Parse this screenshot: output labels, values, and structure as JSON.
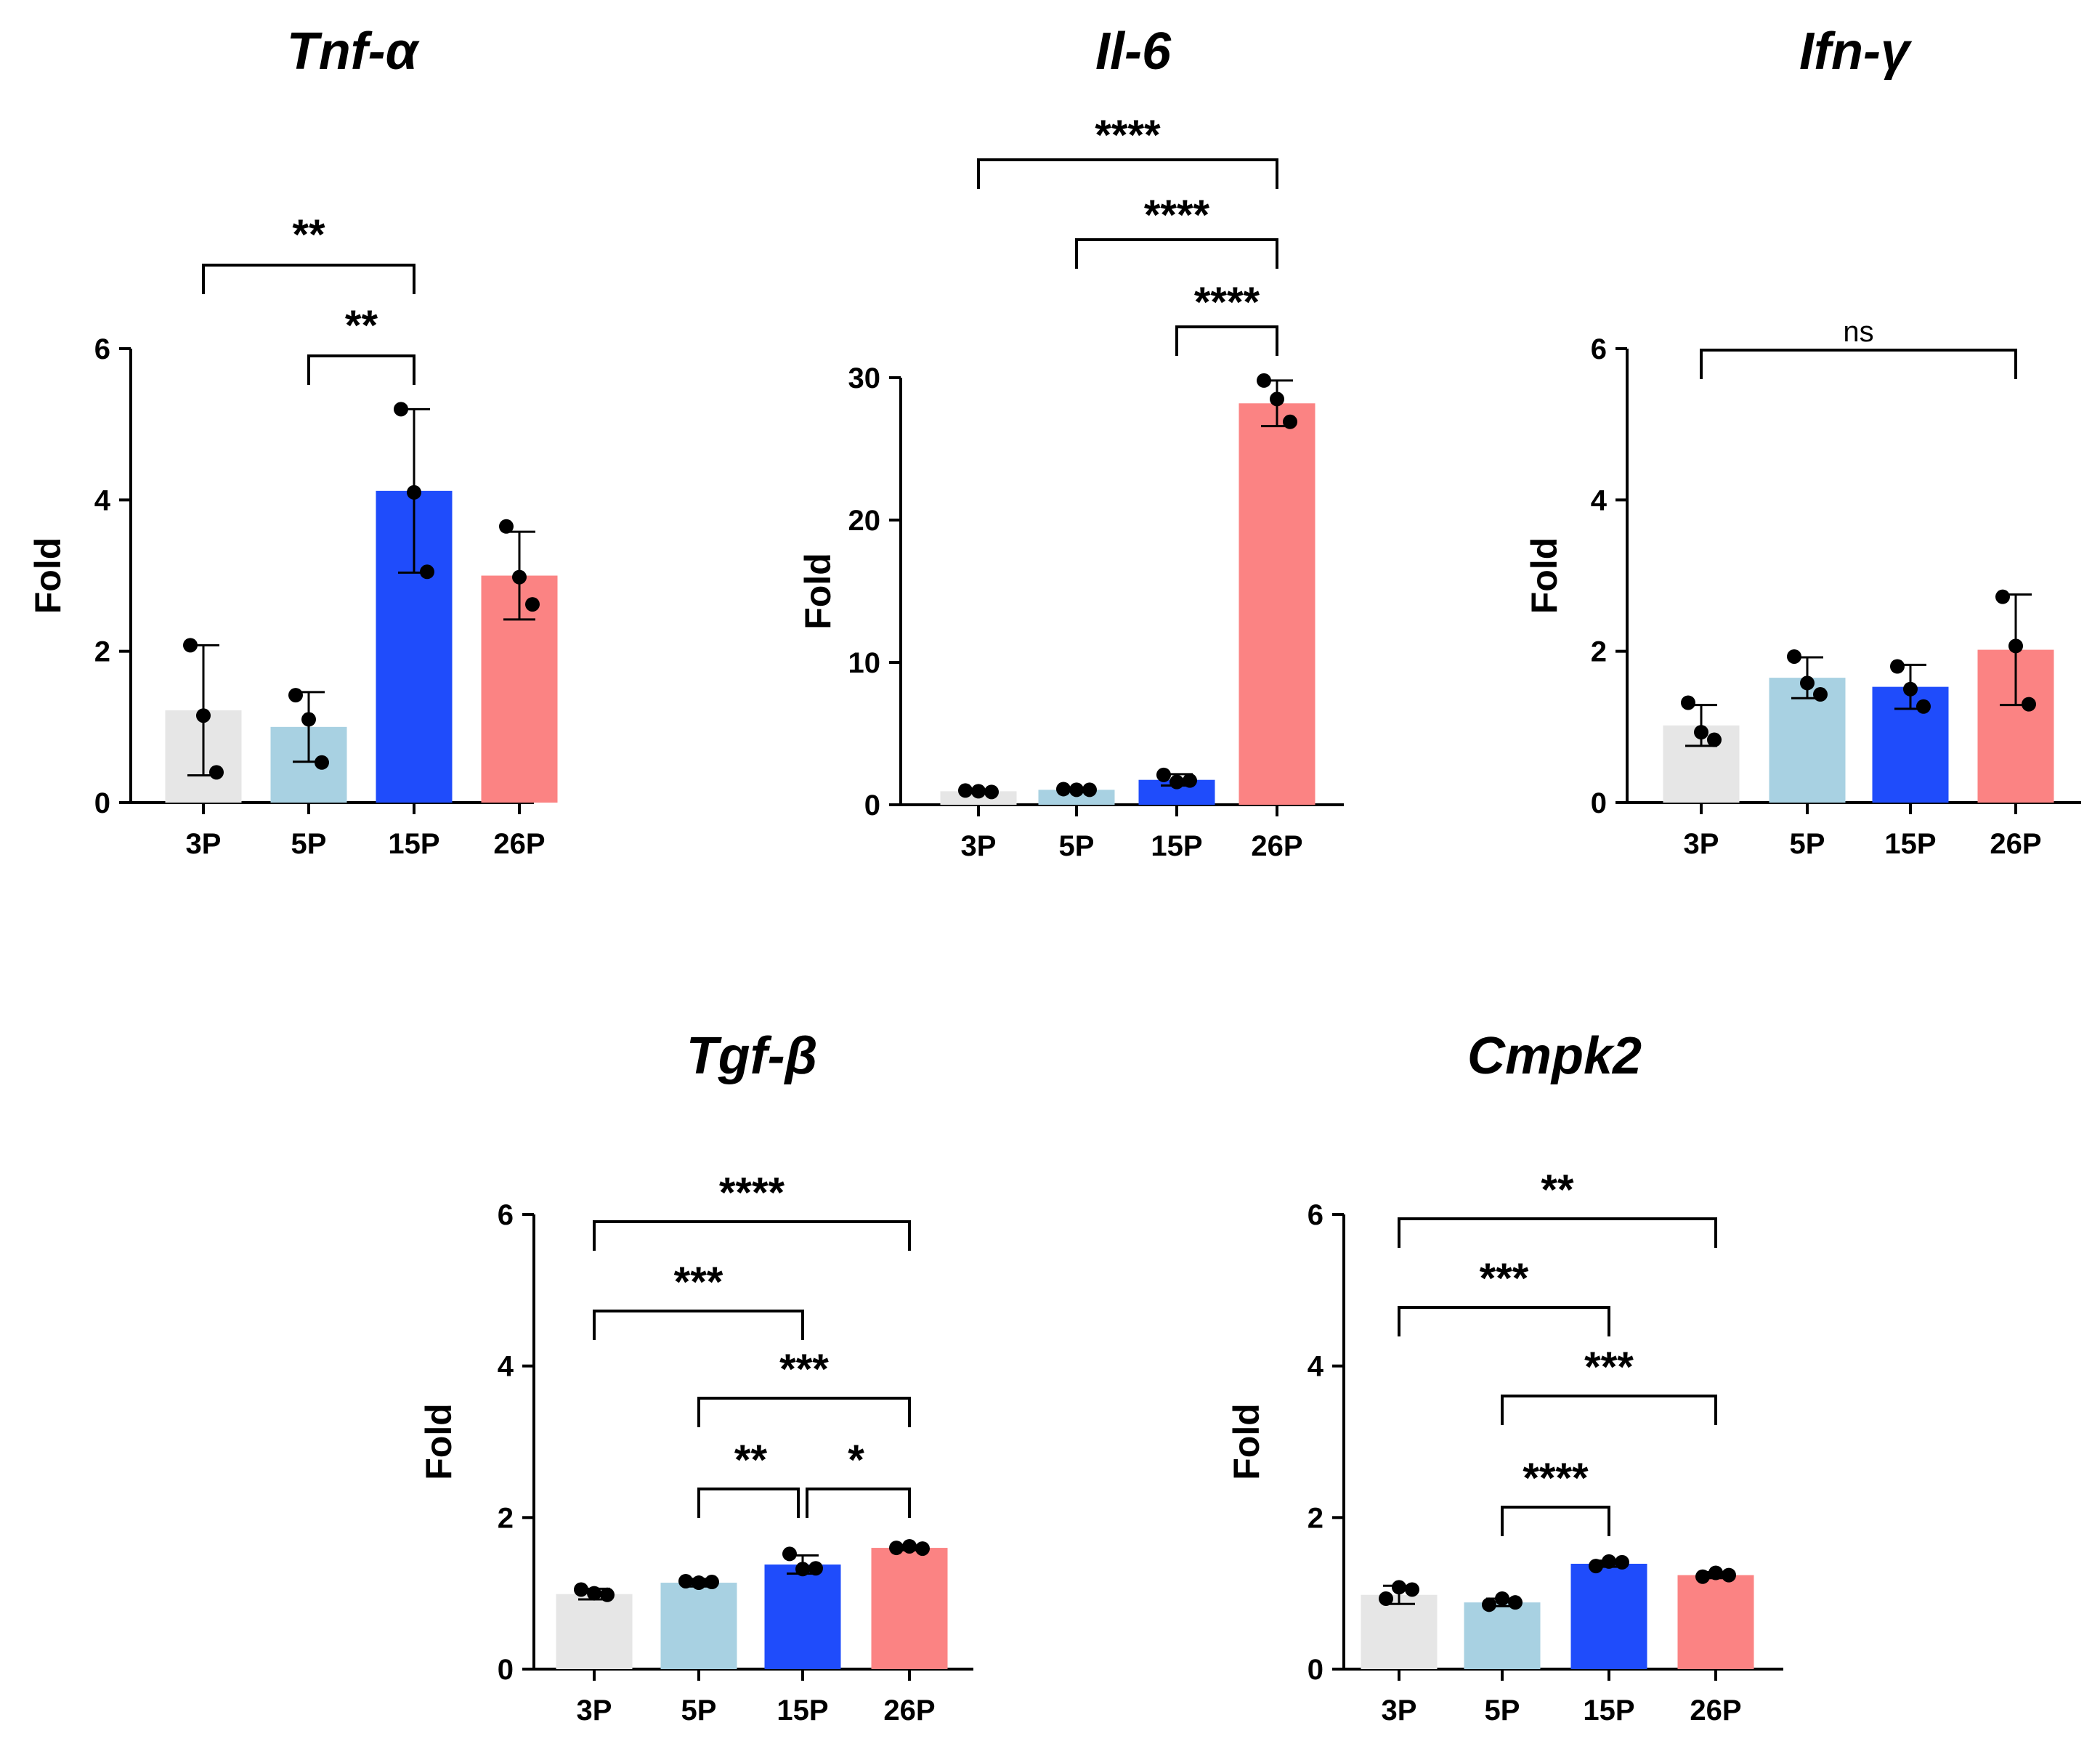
{
  "colors": {
    "3P": "#e6e6e6",
    "5P": "#a8d1e2",
    "15P": "#1f4cfb",
    "26P": "#fb8383",
    "ink": "#000000"
  },
  "chart_data": [
    {
      "type": "bar",
      "title": "Tnf-α",
      "xlabel": "",
      "ylabel": "Fold",
      "categories": [
        "3P",
        "5P",
        "15P",
        "26P"
      ],
      "ylim": [
        0,
        6
      ],
      "yticks": [
        0,
        2,
        4,
        6
      ],
      "values": [
        1.22,
        1.0,
        4.12,
        3.0
      ],
      "errors": [
        0.86,
        0.46,
        1.08,
        0.58
      ],
      "points": [
        [
          2.08,
          1.15,
          0.4
        ],
        [
          1.42,
          1.1,
          0.53
        ],
        [
          5.2,
          4.1,
          3.05
        ],
        [
          3.65,
          2.98,
          2.62
        ]
      ],
      "comparisons": [
        {
          "from": "3P",
          "to": "15P",
          "label": "**"
        },
        {
          "from": "5P",
          "to": "15P",
          "label": "**"
        }
      ]
    },
    {
      "type": "bar",
      "title": "Il-6",
      "xlabel": "",
      "ylabel": "Fold",
      "categories": [
        "3P",
        "5P",
        "15P",
        "26P"
      ],
      "ylim": [
        0,
        30
      ],
      "yticks": [
        0,
        10,
        20,
        30
      ],
      "values": [
        0.95,
        1.05,
        1.75,
        28.2
      ],
      "errors": [
        0.1,
        0.1,
        0.4,
        1.6
      ],
      "points": [
        [
          1.0,
          0.95,
          0.9
        ],
        [
          1.1,
          1.05,
          1.05
        ],
        [
          2.1,
          1.6,
          1.7
        ],
        [
          29.8,
          28.5,
          26.9
        ]
      ],
      "comparisons": [
        {
          "from": "3P",
          "to": "26P",
          "label": "****"
        },
        {
          "from": "5P",
          "to": "26P",
          "label": "****"
        },
        {
          "from": "15P",
          "to": "26P",
          "label": "****"
        }
      ]
    },
    {
      "type": "bar",
      "title": "Ifn-γ",
      "xlabel": "",
      "ylabel": "Fold",
      "categories": [
        "3P",
        "5P",
        "15P",
        "26P"
      ],
      "ylim": [
        0,
        6
      ],
      "yticks": [
        0,
        2,
        4,
        6
      ],
      "values": [
        1.02,
        1.65,
        1.53,
        2.02
      ],
      "errors": [
        0.27,
        0.27,
        0.29,
        0.73
      ],
      "points": [
        [
          1.32,
          0.93,
          0.83
        ],
        [
          1.93,
          1.58,
          1.43
        ],
        [
          1.8,
          1.5,
          1.27
        ],
        [
          2.72,
          2.07,
          1.3
        ]
      ],
      "comparisons": [
        {
          "from": "3P",
          "to": "26P",
          "label": "ns"
        }
      ]
    },
    {
      "type": "bar",
      "title": "Tgf-β",
      "xlabel": "",
      "ylabel": "Fold",
      "categories": [
        "3P",
        "5P",
        "15P",
        "26P"
      ],
      "ylim": [
        0,
        6
      ],
      "yticks": [
        0,
        2,
        4,
        6
      ],
      "values": [
        0.99,
        1.14,
        1.38,
        1.6
      ],
      "errors": [
        0.07,
        0.05,
        0.12,
        0.03
      ],
      "points": [
        [
          1.05,
          1.0,
          0.98
        ],
        [
          1.16,
          1.14,
          1.15
        ],
        [
          1.52,
          1.32,
          1.33
        ],
        [
          1.6,
          1.62,
          1.59
        ]
      ],
      "comparisons": [
        {
          "from": "3P",
          "to": "26P",
          "label": "****"
        },
        {
          "from": "3P",
          "to": "15P",
          "label": "***"
        },
        {
          "from": "5P",
          "to": "26P",
          "label": "***"
        },
        {
          "from": "5P",
          "to": "15P",
          "label": "**"
        },
        {
          "from": "15P",
          "to": "26P",
          "label": "*"
        }
      ]
    },
    {
      "type": "bar",
      "title": "Cmpk2",
      "xlabel": "",
      "ylabel": "Fold",
      "categories": [
        "3P",
        "5P",
        "15P",
        "26P"
      ],
      "ylim": [
        0,
        6
      ],
      "yticks": [
        0,
        2,
        4,
        6
      ],
      "values": [
        0.98,
        0.88,
        1.39,
        1.24
      ],
      "errors": [
        0.12,
        0.05,
        0.04,
        0.04
      ],
      "points": [
        [
          0.93,
          1.08,
          1.05
        ],
        [
          0.85,
          0.93,
          0.88
        ],
        [
          1.36,
          1.42,
          1.41
        ],
        [
          1.22,
          1.27,
          1.24
        ]
      ],
      "comparisons": [
        {
          "from": "3P",
          "to": "26P",
          "label": "**"
        },
        {
          "from": "3P",
          "to": "15P",
          "label": "***"
        },
        {
          "from": "5P",
          "to": "26P",
          "label": "***"
        },
        {
          "from": "5P",
          "to": "15P",
          "label": "****"
        }
      ]
    }
  ]
}
